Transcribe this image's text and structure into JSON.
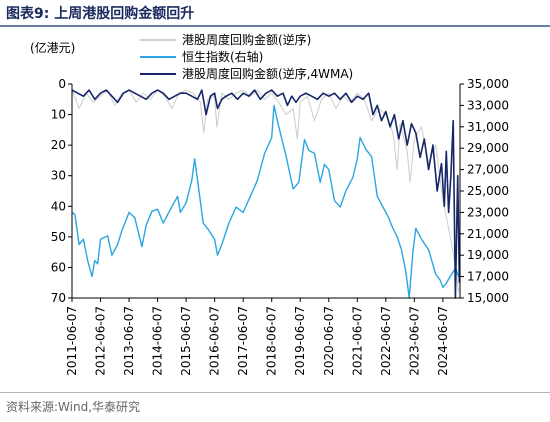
{
  "figure": {
    "title": "图表9:  上周港股回购金额回升",
    "source": "资料来源:Wind,华泰研究"
  },
  "chart_data": {
    "type": "line",
    "left_unit_label": "(亿港元)",
    "left_axis": {
      "reversed": true,
      "min": 0,
      "max": 70,
      "ticks": [
        0,
        10,
        20,
        30,
        40,
        50,
        60,
        70
      ]
    },
    "right_axis": {
      "min": 15000,
      "max": 35000,
      "ticks": [
        "15,000",
        "17,000",
        "19,000",
        "21,000",
        "23,000",
        "25,000",
        "27,000",
        "29,000",
        "31,000",
        "33,000",
        "35,000"
      ],
      "tick_values": [
        15000,
        17000,
        19000,
        21000,
        23000,
        25000,
        27000,
        29000,
        31000,
        33000,
        35000
      ]
    },
    "x_axis": {
      "ticks": [
        "2011-06-07",
        "2012-06-07",
        "2013-06-07",
        "2014-06-07",
        "2015-06-07",
        "2016-06-07",
        "2017-06-07",
        "2018-06-07",
        "2019-06-07",
        "2020-06-07",
        "2021-06-07",
        "2022-06-07",
        "2023-06-07",
        "2024-06-07"
      ]
    },
    "legend_position": "top",
    "series": [
      {
        "name": "港股周度回购金额(逆序)",
        "axis": "left",
        "color": "#d0d0d0",
        "x": [
          2011.0,
          2011.25,
          2011.5,
          2011.75,
          2012.0,
          2012.25,
          2012.5,
          2012.75,
          2013.0,
          2013.25,
          2013.5,
          2013.75,
          2014.0,
          2014.25,
          2014.5,
          2014.75,
          2015.0,
          2015.25,
          2015.5,
          2015.62,
          2015.75,
          2016.0,
          2016.08,
          2016.25,
          2016.5,
          2016.75,
          2017.0,
          2017.25,
          2017.5,
          2017.75,
          2018.0,
          2018.25,
          2018.5,
          2018.75,
          2018.9,
          2019.0,
          2019.25,
          2019.5,
          2019.75,
          2020.0,
          2020.25,
          2020.5,
          2020.75,
          2021.0,
          2021.25,
          2021.5,
          2021.75,
          2022.0,
          2022.25,
          2022.4,
          2022.5,
          2022.75,
          2022.85,
          2023.0,
          2023.25,
          2023.5,
          2023.75,
          2024.0,
          2024.15,
          2024.3,
          2024.45,
          2024.55
        ],
        "y": [
          2,
          8,
          3,
          6,
          4,
          2,
          7,
          3,
          2,
          6,
          3,
          5,
          2,
          4,
          8,
          3,
          2,
          3,
          6,
          16,
          5,
          4,
          14,
          3,
          5,
          3,
          2,
          4,
          2,
          5,
          3,
          6,
          10,
          8,
          18,
          6,
          4,
          12,
          5,
          3,
          8,
          4,
          6,
          3,
          5,
          12,
          8,
          10,
          16,
          28,
          13,
          22,
          32,
          18,
          14,
          26,
          20,
          38,
          45,
          52,
          60,
          68
        ],
        "y_unit": "亿港元"
      },
      {
        "name": "恒生指数(右轴)",
        "axis": "right",
        "color": "#2aa6e0",
        "x": [
          2011.0,
          2011.1,
          2011.25,
          2011.4,
          2011.55,
          2011.7,
          2011.8,
          2011.9,
          2012.0,
          2012.25,
          2012.4,
          2012.6,
          2012.75,
          2013.0,
          2013.2,
          2013.45,
          2013.6,
          2013.8,
          2014.0,
          2014.2,
          2014.45,
          2014.7,
          2014.8,
          2015.0,
          2015.2,
          2015.3,
          2015.45,
          2015.6,
          2015.75,
          2016.0,
          2016.1,
          2016.25,
          2016.5,
          2016.75,
          2017.0,
          2017.25,
          2017.5,
          2017.75,
          2018.0,
          2018.08,
          2018.25,
          2018.5,
          2018.75,
          2018.95,
          2019.15,
          2019.3,
          2019.5,
          2019.7,
          2019.85,
          2020.0,
          2020.2,
          2020.4,
          2020.6,
          2020.85,
          2021.0,
          2021.1,
          2021.3,
          2021.5,
          2021.7,
          2021.9,
          2022.1,
          2022.2,
          2022.4,
          2022.55,
          2022.7,
          2022.82,
          2022.95,
          2023.05,
          2023.25,
          2023.5,
          2023.75,
          2023.9,
          2024.0,
          2024.1,
          2024.3,
          2024.45,
          2024.55
        ],
        "y": [
          23000,
          22800,
          20000,
          20500,
          18500,
          17000,
          18500,
          18200,
          20500,
          20800,
          19000,
          20000,
          21300,
          23000,
          22500,
          19800,
          21800,
          23100,
          23300,
          22000,
          23300,
          24500,
          23000,
          23900,
          26000,
          28000,
          25000,
          22000,
          21500,
          20500,
          19000,
          20000,
          22000,
          23500,
          23000,
          24500,
          26000,
          28500,
          30000,
          33000,
          31000,
          28300,
          25200,
          25800,
          29800,
          28800,
          28500,
          25800,
          27500,
          27000,
          24100,
          23500,
          25000,
          26300,
          28000,
          30000,
          28900,
          28200,
          24500,
          23500,
          22500,
          21800,
          20700,
          19500,
          17500,
          15000,
          19300,
          21500,
          20500,
          19500,
          17200,
          16700,
          16000,
          16300,
          17200,
          17800,
          17000
        ]
      },
      {
        "name": "港股周度回购金额(逆序,4WMA)",
        "axis": "left",
        "color": "#152768",
        "x": [
          2011.0,
          2011.2,
          2011.4,
          2011.6,
          2011.8,
          2012.0,
          2012.2,
          2012.4,
          2012.6,
          2012.8,
          2013.0,
          2013.2,
          2013.4,
          2013.6,
          2013.8,
          2014.0,
          2014.2,
          2014.4,
          2014.6,
          2014.8,
          2015.0,
          2015.2,
          2015.4,
          2015.55,
          2015.7,
          2015.85,
          2016.0,
          2016.1,
          2016.25,
          2016.4,
          2016.6,
          2016.8,
          2017.0,
          2017.2,
          2017.4,
          2017.6,
          2017.8,
          2018.0,
          2018.2,
          2018.4,
          2018.55,
          2018.7,
          2018.85,
          2019.0,
          2019.2,
          2019.4,
          2019.6,
          2019.8,
          2020.0,
          2020.2,
          2020.4,
          2020.6,
          2020.8,
          2021.0,
          2021.2,
          2021.4,
          2021.55,
          2021.7,
          2021.85,
          2022.0,
          2022.15,
          2022.3,
          2022.45,
          2022.6,
          2022.75,
          2022.9,
          2023.05,
          2023.2,
          2023.35,
          2023.5,
          2023.65,
          2023.8,
          2023.95,
          2024.05,
          2024.12,
          2024.2,
          2024.28,
          2024.36,
          2024.44,
          2024.52,
          2024.58
        ],
        "y": [
          2,
          3,
          4,
          2,
          5,
          3,
          2,
          4,
          6,
          3,
          2,
          3,
          4,
          5,
          3,
          2,
          3,
          5,
          4,
          3,
          3,
          4,
          5,
          2,
          10,
          4,
          3,
          8,
          5,
          4,
          3,
          5,
          3,
          4,
          2,
          5,
          3,
          2,
          4,
          3,
          7,
          4,
          6,
          4,
          3,
          4,
          5,
          3,
          4,
          3,
          5,
          3,
          6,
          4,
          5,
          3,
          10,
          7,
          12,
          9,
          14,
          10,
          18,
          12,
          20,
          13,
          16,
          24,
          18,
          28,
          20,
          35,
          26,
          40,
          22,
          42,
          30,
          12,
          70,
          30,
          65
        ]
      }
    ]
  }
}
